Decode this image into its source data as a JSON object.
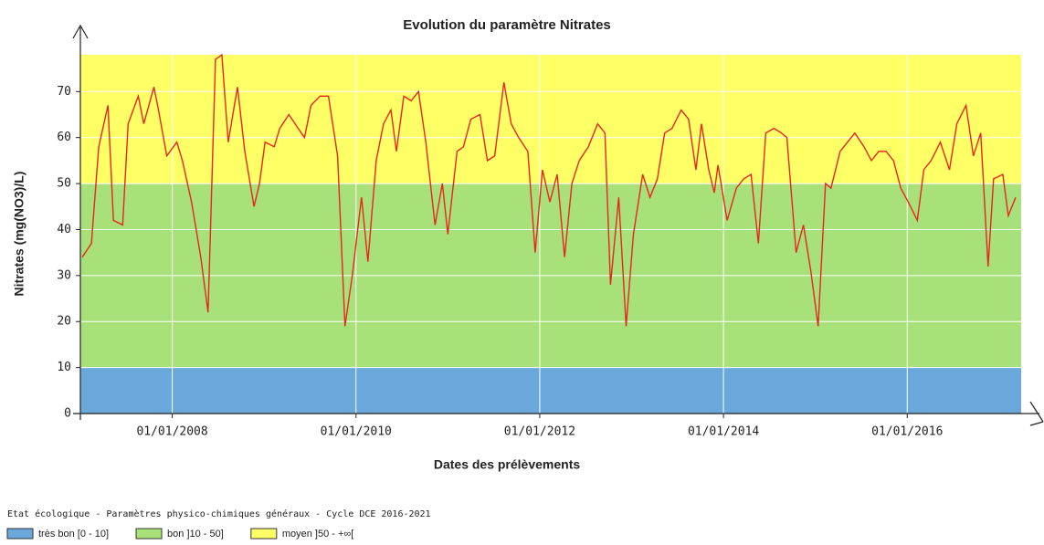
{
  "chart_data": {
    "type": "line",
    "title": "Evolution du paramètre Nitrates",
    "x_label": "Dates des prélèvements",
    "y_label": "Nitrates (mg(NO3)/L)",
    "color": "#e8261e",
    "grid": true,
    "xlim": [
      2007,
      2017.24
    ],
    "ylim": [
      0,
      78
    ],
    "xticks": [
      {
        "value": 2008,
        "label": "01/01/2008"
      },
      {
        "value": 2010,
        "label": "01/01/2010"
      },
      {
        "value": 2012,
        "label": "01/01/2012"
      },
      {
        "value": 2014,
        "label": "01/01/2014"
      },
      {
        "value": 2016,
        "label": "01/01/2016"
      }
    ],
    "yticks": [
      0,
      10,
      20,
      30,
      40,
      50,
      60,
      70
    ],
    "legend_title": "Etat écologique - Paramètres physico-chimiques généraux - Cycle DCE 2016-2021",
    "bands": [
      {
        "label": "très bon [0 - 10]",
        "from": 0,
        "color": "#6aa8dc"
      },
      {
        "label": "bon ]10 - 50]",
        "from": 10,
        "color": "#a8e07a"
      },
      {
        "label": "moyen ]50 - +∞[",
        "from": 50,
        "color": "#ffff66"
      }
    ],
    "x": [
      2007.02,
      2007.12,
      2007.2,
      2007.3,
      2007.36,
      2007.46,
      2007.52,
      2007.63,
      2007.69,
      2007.8,
      2007.85,
      2007.94,
      2008.05,
      2008.11,
      2008.21,
      2008.31,
      2008.39,
      2008.47,
      2008.54,
      2008.61,
      2008.71,
      2008.79,
      2008.89,
      2008.95,
      2009.01,
      2009.11,
      2009.17,
      2009.27,
      2009.37,
      2009.44,
      2009.51,
      2009.61,
      2009.7,
      2009.8,
      2009.88,
      2009.96,
      2010.06,
      2010.13,
      2010.22,
      2010.3,
      2010.38,
      2010.44,
      2010.52,
      2010.6,
      2010.68,
      2010.76,
      2010.86,
      2010.94,
      2011.0,
      2011.1,
      2011.17,
      2011.25,
      2011.35,
      2011.43,
      2011.51,
      2011.61,
      2011.69,
      2011.77,
      2011.87,
      2011.95,
      2012.03,
      2012.11,
      2012.19,
      2012.27,
      2012.35,
      2012.43,
      2012.53,
      2012.63,
      2012.71,
      2012.77,
      2012.86,
      2012.94,
      2013.02,
      2013.12,
      2013.2,
      2013.28,
      2013.36,
      2013.44,
      2013.54,
      2013.62,
      2013.7,
      2013.76,
      2013.84,
      2013.9,
      2013.94,
      2014.04,
      2014.14,
      2014.22,
      2014.3,
      2014.38,
      2014.46,
      2014.55,
      2014.63,
      2014.69,
      2014.79,
      2014.87,
      2014.95,
      2015.03,
      2015.11,
      2015.17,
      2015.27,
      2015.35,
      2015.43,
      2015.53,
      2015.61,
      2015.69,
      2015.77,
      2015.85,
      2015.93,
      2016.01,
      2016.11,
      2016.18,
      2016.26,
      2016.36,
      2016.46,
      2016.54,
      2016.64,
      2016.72,
      2016.8,
      2016.88,
      2016.94,
      2017.04,
      2017.1,
      2017.18
    ],
    "values": [
      34,
      37,
      58,
      67,
      42,
      41,
      63,
      69,
      63,
      71,
      66,
      56,
      59,
      55,
      46,
      34,
      22,
      77,
      78,
      59,
      71,
      57,
      45,
      50,
      59,
      58,
      62,
      65,
      62,
      60,
      67,
      69,
      69,
      56,
      19,
      30,
      47,
      33,
      55,
      63,
      66,
      57,
      69,
      68,
      70,
      59,
      41,
      50,
      39,
      57,
      58,
      64,
      65,
      55,
      56,
      72,
      63,
      60,
      57,
      35,
      53,
      46,
      52,
      34,
      50,
      55,
      58,
      63,
      61,
      28,
      47,
      19,
      39,
      52,
      47,
      51,
      61,
      62,
      66,
      64,
      53,
      63,
      53,
      48,
      54,
      42,
      49,
      51,
      52,
      37,
      61,
      62,
      61,
      60,
      35,
      41,
      31,
      19,
      50,
      49,
      57,
      59,
      61,
      58,
      55,
      57,
      57,
      55,
      49,
      46,
      42,
      53,
      55,
      59,
      53,
      63,
      67,
      56,
      61,
      32,
      51,
      52,
      43,
      47
    ]
  }
}
